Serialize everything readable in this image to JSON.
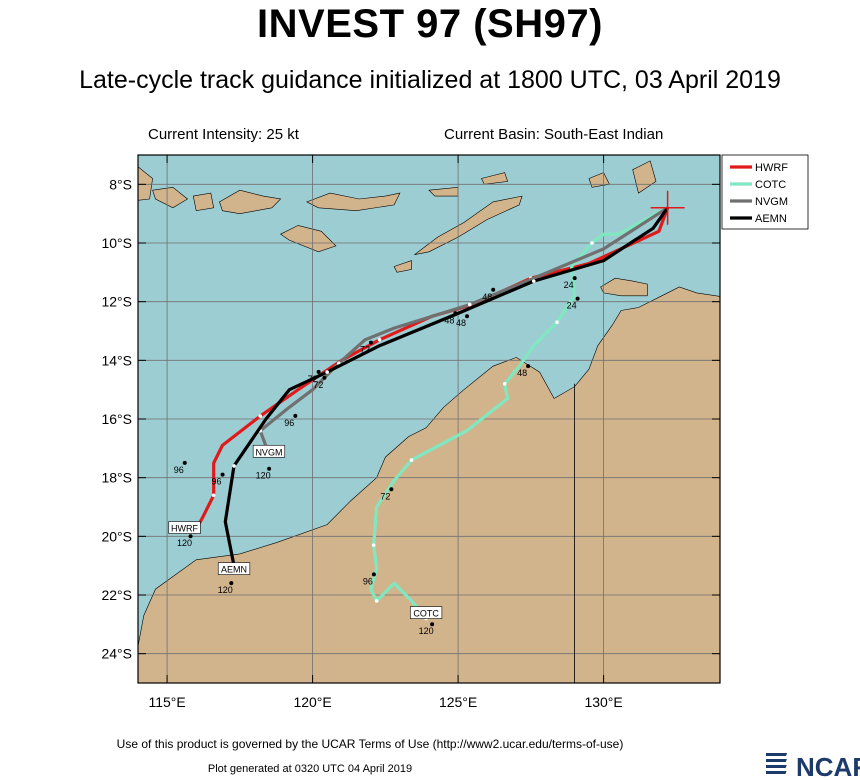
{
  "header": {
    "title": "INVEST 97 (SH97)",
    "subtitle": "Late-cycle track guidance initialized at 1800 UTC, 03 April 2019"
  },
  "info": {
    "intensity": "Current Intensity: 25 kt",
    "basin": "Current Basin: South-East Indian"
  },
  "map": {
    "lon_range": [
      114,
      134
    ],
    "lat_range": [
      -25,
      -7
    ],
    "lon_ticks": [
      {
        "v": 115,
        "label": "115°E"
      },
      {
        "v": 120,
        "label": "120°E"
      },
      {
        "v": 125,
        "label": "125°E"
      },
      {
        "v": 130,
        "label": "130°E"
      }
    ],
    "lat_ticks": [
      {
        "v": -8,
        "label": "8°S"
      },
      {
        "v": -10,
        "label": "10°S"
      },
      {
        "v": -12,
        "label": "12°S"
      },
      {
        "v": -14,
        "label": "14°S"
      },
      {
        "v": -16,
        "label": "16°S"
      },
      {
        "v": -18,
        "label": "18°S"
      },
      {
        "v": -20,
        "label": "20°S"
      },
      {
        "v": -22,
        "label": "22°S"
      },
      {
        "v": -24,
        "label": "24°S"
      }
    ],
    "ocean_color": "#9ccdd2",
    "land_color": "#d2b48c",
    "current_position": {
      "lon": 132.2,
      "lat": -8.8
    }
  },
  "chart_data": {
    "type": "line",
    "x_axis": "longitude",
    "y_axis": "latitude",
    "series": [
      {
        "name": "HWRF",
        "color": "#e01a1a",
        "points": [
          [
            132.2,
            -8.8
          ],
          [
            131.9,
            -9.6
          ],
          [
            129.5,
            -10.7
          ],
          [
            127.5,
            -11.2
          ],
          [
            125.5,
            -12.1
          ],
          [
            124.1,
            -12.5
          ],
          [
            122.3,
            -13.3
          ],
          [
            121.0,
            -14.0
          ],
          [
            119.5,
            -15.0
          ],
          [
            118.2,
            -15.9
          ],
          [
            116.9,
            -16.9
          ],
          [
            116.6,
            -17.5
          ],
          [
            116.6,
            -18.6
          ],
          [
            116.2,
            -19.4
          ],
          [
            115.9,
            -19.9
          ]
        ],
        "labels": [
          {
            "lon": 124.7,
            "lat": -12.6,
            "text": "48"
          },
          {
            "lon": 120.0,
            "lat": -14.6,
            "text": "72"
          },
          {
            "lon": 115.4,
            "lat": -17.7,
            "text": "96"
          },
          {
            "lon": 115.6,
            "lat": -20.2,
            "text": "120"
          }
        ],
        "endpoint_label": "HWRF",
        "endpoint": {
          "lon": 115.6,
          "lat": -19.7
        }
      },
      {
        "name": "COTC",
        "color": "#80e8c0",
        "points": [
          [
            132.2,
            -8.8
          ],
          [
            130.5,
            -9.7
          ],
          [
            130.0,
            -9.7
          ],
          [
            129.6,
            -10.0
          ],
          [
            128.9,
            -10.8
          ],
          [
            129.0,
            -11.8
          ],
          [
            128.4,
            -12.7
          ],
          [
            127.6,
            -13.5
          ],
          [
            127.1,
            -14.2
          ],
          [
            126.6,
            -14.8
          ],
          [
            126.7,
            -15.3
          ],
          [
            125.3,
            -16.4
          ],
          [
            123.4,
            -17.4
          ],
          [
            122.8,
            -18.1
          ],
          [
            122.2,
            -19.0
          ],
          [
            122.1,
            -20.3
          ],
          [
            122.2,
            -21.1
          ],
          [
            122.0,
            -21.8
          ],
          [
            122.2,
            -22.2
          ],
          [
            122.8,
            -21.6
          ],
          [
            123.4,
            -22.2
          ],
          [
            123.9,
            -22.8
          ]
        ],
        "labels": [
          {
            "lon": 128.9,
            "lat": -12.1,
            "text": "24"
          },
          {
            "lon": 127.2,
            "lat": -14.4,
            "text": "48"
          },
          {
            "lon": 122.5,
            "lat": -18.6,
            "text": "72"
          },
          {
            "lon": 121.9,
            "lat": -21.5,
            "text": "96"
          },
          {
            "lon": 123.9,
            "lat": -23.2,
            "text": "120"
          }
        ],
        "endpoint_label": "COTC",
        "endpoint": {
          "lon": 123.9,
          "lat": -22.6
        }
      },
      {
        "name": "NVGM",
        "color": "#707070",
        "points": [
          [
            132.2,
            -8.8
          ],
          [
            130.0,
            -10.2
          ],
          [
            127.6,
            -11.2
          ],
          [
            125.4,
            -12.1
          ],
          [
            122.8,
            -12.9
          ],
          [
            121.8,
            -13.3
          ],
          [
            120.9,
            -14.1
          ],
          [
            120.0,
            -15.0
          ],
          [
            119.2,
            -15.6
          ],
          [
            118.2,
            -16.4
          ],
          [
            118.5,
            -17.2
          ]
        ],
        "labels": [
          {
            "lon": 128.8,
            "lat": -11.4,
            "text": "24"
          },
          {
            "lon": 126.0,
            "lat": -11.8,
            "text": "48"
          },
          {
            "lon": 121.8,
            "lat": -13.6,
            "text": "72"
          },
          {
            "lon": 119.2,
            "lat": -16.1,
            "text": "96"
          },
          {
            "lon": 118.3,
            "lat": -17.9,
            "text": "120"
          }
        ],
        "endpoint_label": "NVGM",
        "endpoint": {
          "lon": 118.5,
          "lat": -17.1
        }
      },
      {
        "name": "AEMN",
        "color": "#000000",
        "points": [
          [
            132.2,
            -8.8
          ],
          [
            131.7,
            -9.5
          ],
          [
            130.0,
            -10.6
          ],
          [
            127.6,
            -11.3
          ],
          [
            125.0,
            -12.4
          ],
          [
            122.3,
            -13.5
          ],
          [
            120.5,
            -14.4
          ],
          [
            119.2,
            -15.0
          ],
          [
            118.4,
            -16.0
          ],
          [
            117.3,
            -17.6
          ],
          [
            117.0,
            -19.5
          ],
          [
            117.3,
            -21.0
          ]
        ],
        "labels": [
          {
            "lon": 125.1,
            "lat": -12.7,
            "text": "48"
          },
          {
            "lon": 120.2,
            "lat": -14.8,
            "text": "72"
          },
          {
            "lon": 116.7,
            "lat": -18.1,
            "text": "96"
          },
          {
            "lon": 117.0,
            "lat": -21.8,
            "text": "120"
          }
        ],
        "endpoint_label": "AEMN",
        "endpoint": {
          "lon": 117.3,
          "lat": -21.1
        }
      }
    ],
    "legend": {
      "placement": "right",
      "entries": [
        "HWRF",
        "COTC",
        "NVGM",
        "AEMN"
      ]
    }
  },
  "footer": {
    "terms": "Use of this product is governed by the UCAR Terms of Use (http://www2.ucar.edu/terms-of-use)",
    "plotgen": "Plot generated at 0320 UTC   04 April 2019",
    "logo_text": "NCAR"
  }
}
